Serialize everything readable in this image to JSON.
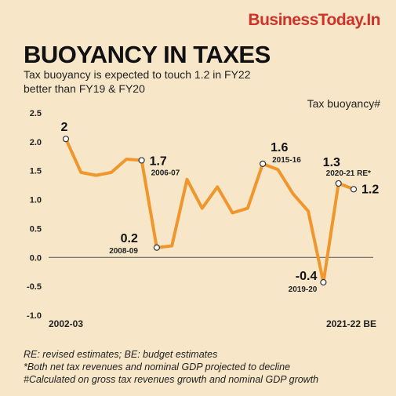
{
  "header": {
    "brand": "BusinessToday.In",
    "title": "BUOYANCY IN TAXES",
    "subtitle": "Tax buoyancy is expected to touch 1.2 in FY22 better than FY19 & FY20"
  },
  "colors": {
    "line": "#f0962d",
    "background": "#f7e7c8",
    "brand": "#d0322a"
  },
  "chart_data": {
    "type": "line",
    "title": "BUOYANCY IN TAXES",
    "ylabel": "Tax buoyancy#",
    "ylim": [
      -1.0,
      2.5
    ],
    "yticks": [
      "2.5",
      "2.0",
      "1.5",
      "1.0",
      "0.5",
      "0.0",
      "-0.5",
      "-1.0"
    ],
    "x_start_label": "2002-03",
    "x_end_label": "2021-22 BE",
    "values": [
      2.05,
      1.47,
      1.42,
      1.47,
      1.7,
      1.68,
      0.17,
      0.2,
      1.35,
      0.85,
      1.22,
      0.77,
      0.85,
      1.62,
      1.52,
      1.1,
      0.8,
      -0.43,
      1.28,
      1.18
    ],
    "annotations": [
      {
        "index": 0,
        "value": "2",
        "label": ""
      },
      {
        "index": 5,
        "value": "1.7",
        "label": "2006-07"
      },
      {
        "index": 6,
        "value": "0.2",
        "label": "2008-09"
      },
      {
        "index": 13,
        "value": "1.6",
        "label": "2015-16"
      },
      {
        "index": 17,
        "value": "-0.4",
        "label": "2019-20"
      },
      {
        "index": 18,
        "value": "1.3",
        "label": "2020-21 RE*"
      },
      {
        "index": 19,
        "value": "1.2",
        "label": ""
      }
    ],
    "grid": false
  },
  "notes": [
    "RE: revised estimates; BE: budget estimates",
    "*Both net tax revenues and nominal GDP projected to decline",
    "#Calculated on gross tax revenues growth and nominal GDP growth"
  ]
}
